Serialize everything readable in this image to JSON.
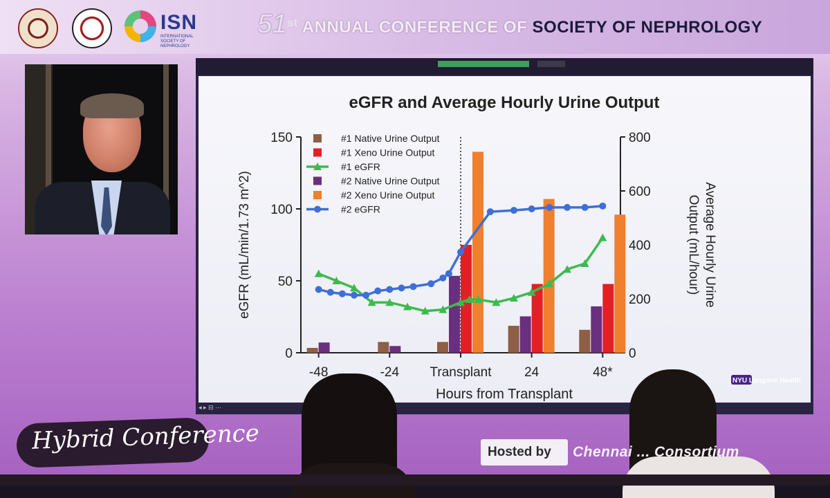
{
  "banner": {
    "isn_logo_text": "ISN",
    "isn_logo_subtext": "INTERNATIONAL SOCIETY OF NEPHROLOGY",
    "conference_number": "51",
    "conference_suffix": "st",
    "conference_title_light": "ANNUAL CONFERENCE OF",
    "conference_title_dark": "SOCIETY OF NEPHROLOGY"
  },
  "footer": {
    "hybrid_label": "Hybrid Conference",
    "hosted_label": "Hosted by",
    "host_name": "Chennai ... Consortium"
  },
  "slide": {
    "institution_logo_text": "NYU Langone Health",
    "controls_text": "◂ ▸ ⊟ ⋯"
  },
  "chart_data": {
    "type": "bar",
    "title": "eGFR and Average Hourly Urine Output",
    "xlabel": "Hours from Transplant",
    "ylabel_left": "eGFR (mL/min/1.73 m^2)",
    "ylabel_right": "Average Hourly Urine Output (mL/hour)",
    "ylim_left": [
      0,
      150
    ],
    "ylim_right": [
      0,
      800
    ],
    "yticks_left": [
      "0",
      "50",
      "100",
      "150"
    ],
    "yticks_right": [
      "0",
      "200",
      "400",
      "600",
      "800"
    ],
    "x_range": [
      -54,
      54
    ],
    "xticks": [
      {
        "x": -48,
        "label": "-48"
      },
      {
        "x": -24,
        "label": "-24"
      },
      {
        "x": 0,
        "label": "Transplant"
      },
      {
        "x": 24,
        "label": "24"
      },
      {
        "x": 48,
        "label": "48*"
      }
    ],
    "transplant_line_x": 0,
    "legend_position": "top-left",
    "grid": false,
    "bar_groups": [
      {
        "x": -48,
        "bars": [
          {
            "series": 0,
            "value": 18
          },
          {
            "series": 3,
            "value": 38
          }
        ]
      },
      {
        "x": -24,
        "bars": [
          {
            "series": 0,
            "value": 40
          },
          {
            "series": 3,
            "value": 25
          }
        ]
      },
      {
        "x": 0,
        "bars": [
          {
            "series": 0,
            "value": 40
          },
          {
            "series": 3,
            "value": 285
          },
          {
            "series": 1,
            "value": 400
          },
          {
            "series": 4,
            "value": 745
          }
        ]
      },
      {
        "x": 24,
        "bars": [
          {
            "series": 0,
            "value": 100
          },
          {
            "series": 3,
            "value": 135
          },
          {
            "series": 1,
            "value": 255
          },
          {
            "series": 4,
            "value": 570
          }
        ]
      },
      {
        "x": 48,
        "bars": [
          {
            "series": 0,
            "value": 85
          },
          {
            "series": 3,
            "value": 172
          },
          {
            "series": 1,
            "value": 255
          },
          {
            "series": 4,
            "value": 512
          }
        ]
      }
    ],
    "series": [
      {
        "name": "#1 Native Urine Output",
        "kind": "bar",
        "axis": "right",
        "color": "#8f5e46"
      },
      {
        "name": "#1 Xeno Urine Output",
        "kind": "bar",
        "axis": "right",
        "color": "#e31f26"
      },
      {
        "name": "#1 eGFR",
        "kind": "line",
        "axis": "left",
        "color": "#3dba4f",
        "marker": "triangle",
        "x": [
          -48,
          -42,
          -36,
          -30,
          -24,
          -18,
          -12,
          -6,
          0,
          3,
          6,
          12,
          18,
          24,
          30,
          36,
          42,
          48
        ],
        "y": [
          55,
          50,
          45,
          35,
          35,
          32,
          29,
          30,
          35,
          37,
          37,
          35,
          38,
          42,
          48,
          58,
          62,
          80
        ]
      },
      {
        "name": "#2 Native Urine Output",
        "kind": "bar",
        "axis": "right",
        "color": "#6a2f7e"
      },
      {
        "name": "#2 Xeno Urine Output",
        "kind": "bar",
        "axis": "right",
        "color": "#f07f2e"
      },
      {
        "name": "#2 eGFR",
        "kind": "line",
        "axis": "left",
        "color": "#3f6fd6",
        "marker": "circle",
        "x": [
          -48,
          -44,
          -40,
          -36,
          -32,
          -28,
          -24,
          -20,
          -16,
          -10,
          -6,
          -4,
          0,
          10,
          18,
          24,
          30,
          36,
          42,
          48
        ],
        "y": [
          44,
          42,
          41,
          40,
          40,
          43,
          44,
          45,
          46,
          48,
          52,
          55,
          70,
          98,
          99,
          100,
          101,
          101,
          101,
          102
        ]
      }
    ]
  }
}
